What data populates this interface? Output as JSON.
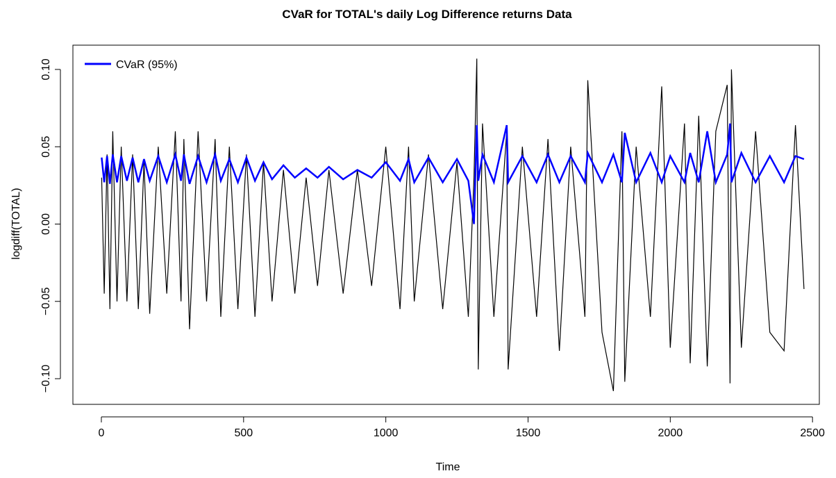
{
  "chart_data": {
    "type": "line",
    "title": "CVaR for TOTAL's daily Log Difference returns Data",
    "x_label": "Time",
    "y_label": "logdiff(TOTAL)",
    "x": [
      1,
      10,
      20,
      30,
      40,
      55,
      70,
      90,
      110,
      130,
      150,
      170,
      200,
      230,
      260,
      280,
      290,
      310,
      340,
      370,
      400,
      420,
      450,
      480,
      510,
      540,
      570,
      600,
      640,
      680,
      720,
      760,
      800,
      850,
      900,
      950,
      1000,
      1050,
      1080,
      1100,
      1150,
      1200,
      1250,
      1290,
      1310,
      1320,
      1325,
      1340,
      1380,
      1425,
      1430,
      1480,
      1530,
      1570,
      1610,
      1650,
      1700,
      1710,
      1760,
      1800,
      1830,
      1840,
      1880,
      1930,
      1970,
      2000,
      2050,
      2070,
      2100,
      2130,
      2160,
      2200,
      2210,
      2215,
      2250,
      2300,
      2350,
      2400,
      2440,
      2470
    ],
    "series": [
      {
        "color": "#000000",
        "values": [
          0.03,
          -0.045,
          0.045,
          -0.055,
          0.06,
          -0.05,
          0.05,
          -0.05,
          0.045,
          -0.055,
          0.04,
          -0.058,
          0.05,
          -0.045,
          0.06,
          -0.05,
          0.055,
          -0.068,
          0.06,
          -0.05,
          0.055,
          -0.06,
          0.05,
          -0.055,
          0.045,
          -0.06,
          0.04,
          -0.05,
          0.035,
          -0.045,
          0.03,
          -0.04,
          0.035,
          -0.045,
          0.035,
          -0.04,
          0.05,
          -0.055,
          0.05,
          -0.05,
          0.045,
          -0.055,
          0.04,
          -0.06,
          0.03,
          0.107,
          -0.094,
          0.065,
          -0.06,
          0.06,
          -0.094,
          0.05,
          -0.06,
          0.055,
          -0.082,
          0.05,
          -0.06,
          0.093,
          -0.07,
          -0.108,
          0.06,
          -0.102,
          0.05,
          -0.06,
          0.089,
          -0.08,
          0.065,
          -0.09,
          0.07,
          -0.092,
          0.06,
          0.09,
          -0.103,
          0.1,
          -0.08,
          0.06,
          -0.07,
          -0.082,
          0.064,
          -0.042
        ]
      },
      {
        "name": "CVaR (95%)",
        "color": "#0000ff",
        "values": [
          0.043,
          0.027,
          0.044,
          0.026,
          0.045,
          0.027,
          0.044,
          0.028,
          0.043,
          0.027,
          0.042,
          0.028,
          0.044,
          0.027,
          0.045,
          0.028,
          0.045,
          0.026,
          0.044,
          0.027,
          0.045,
          0.028,
          0.042,
          0.027,
          0.043,
          0.028,
          0.04,
          0.029,
          0.038,
          0.03,
          0.036,
          0.03,
          0.037,
          0.029,
          0.035,
          0.03,
          0.04,
          0.028,
          0.042,
          0.027,
          0.043,
          0.027,
          0.042,
          0.028,
          0.0,
          0.064,
          0.028,
          0.045,
          0.027,
          0.064,
          0.027,
          0.044,
          0.027,
          0.045,
          0.027,
          0.044,
          0.027,
          0.046,
          0.027,
          0.045,
          0.027,
          0.059,
          0.027,
          0.046,
          0.027,
          0.044,
          0.027,
          0.046,
          0.027,
          0.06,
          0.027,
          0.045,
          0.065,
          0.027,
          0.046,
          0.027,
          0.044,
          0.027,
          0.044,
          0.042
        ]
      }
    ],
    "xlim": [
      -100,
      2524
    ],
    "ylim": [
      -0.1166,
      0.1157
    ],
    "xticks": [
      0,
      500,
      1000,
      1500,
      2000,
      2500
    ],
    "yticks": [
      {
        "value": -0.1,
        "label": "−0.10"
      },
      {
        "value": -0.05,
        "label": "−0.05"
      },
      {
        "value": 0,
        "label": "0.00"
      },
      {
        "value": 0.05,
        "label": "0.05"
      },
      {
        "value": 0.1,
        "label": "0.10"
      }
    ],
    "legend": "top-left"
  }
}
